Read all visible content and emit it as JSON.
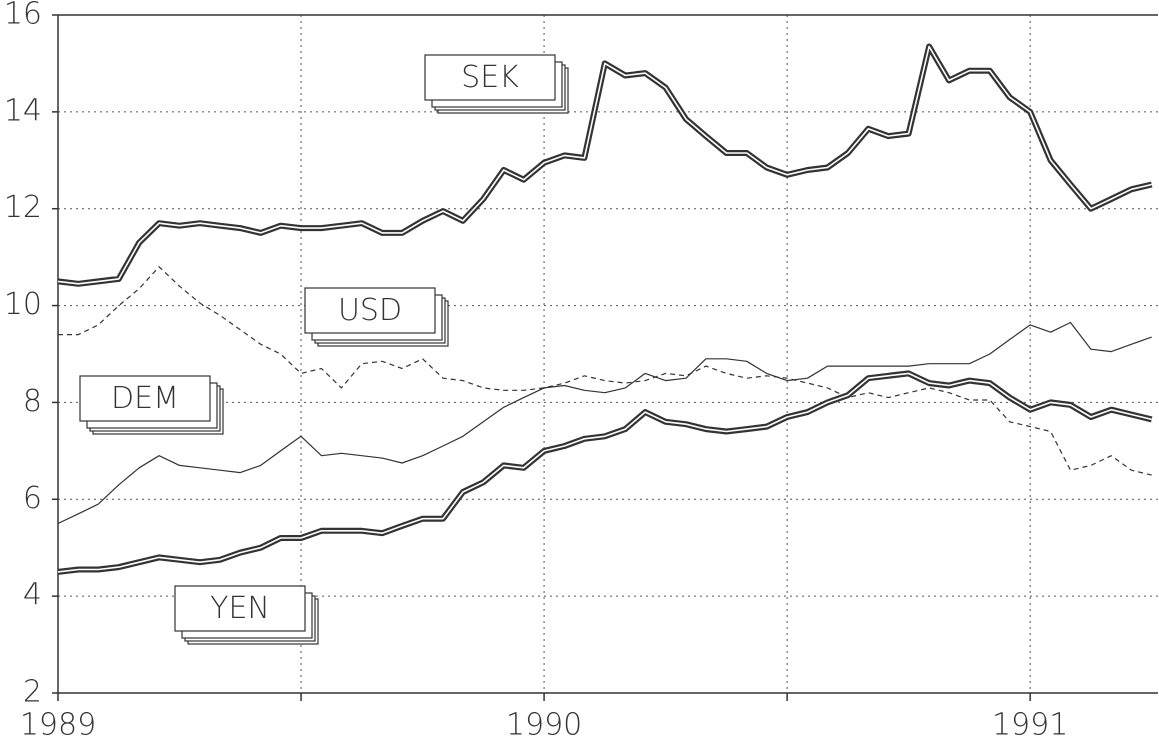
{
  "chart_data": {
    "type": "line",
    "x": [
      1989.0,
      1989.042,
      1989.083,
      1989.125,
      1989.167,
      1989.208,
      1989.25,
      1989.292,
      1989.333,
      1989.375,
      1989.417,
      1989.458,
      1989.5,
      1989.542,
      1989.583,
      1989.625,
      1989.667,
      1989.708,
      1989.75,
      1989.792,
      1989.833,
      1989.875,
      1989.917,
      1989.958,
      1990.0,
      1990.042,
      1990.083,
      1990.125,
      1990.167,
      1990.208,
      1990.25,
      1990.292,
      1990.333,
      1990.375,
      1990.417,
      1990.458,
      1990.5,
      1990.542,
      1990.583,
      1990.625,
      1990.667,
      1990.708,
      1990.75,
      1990.792,
      1990.833,
      1990.875,
      1990.917,
      1990.958,
      1991.0,
      1991.042,
      1991.083,
      1991.125,
      1991.167,
      1991.208,
      1991.25
    ],
    "series": [
      {
        "name": "SEK",
        "color": "#333333",
        "style": "thick",
        "values": [
          10.5,
          10.45,
          10.5,
          10.55,
          11.3,
          11.7,
          11.65,
          11.7,
          11.65,
          11.6,
          11.5,
          11.65,
          11.6,
          11.6,
          11.65,
          11.7,
          11.5,
          11.5,
          11.75,
          11.95,
          11.75,
          12.2,
          12.8,
          12.6,
          12.95,
          13.1,
          13.05,
          15.0,
          14.75,
          14.8,
          14.5,
          13.85,
          13.5,
          13.15,
          13.15,
          12.85,
          12.7,
          12.8,
          12.85,
          13.15,
          13.65,
          13.5,
          13.55,
          15.35,
          14.65,
          14.85,
          14.85,
          14.3,
          14.0,
          13.0,
          12.5,
          12.0,
          12.2,
          12.4,
          12.5
        ]
      },
      {
        "name": "USD",
        "color": "#333333",
        "style": "dashed",
        "values": [
          9.4,
          9.4,
          9.6,
          10.0,
          10.35,
          10.8,
          10.4,
          10.05,
          9.8,
          9.5,
          9.2,
          9.0,
          8.6,
          8.7,
          8.3,
          8.8,
          8.85,
          8.7,
          8.9,
          8.5,
          8.45,
          8.3,
          8.25,
          8.25,
          8.3,
          8.4,
          8.55,
          8.45,
          8.4,
          8.45,
          8.6,
          8.55,
          8.75,
          8.6,
          8.5,
          8.55,
          8.5,
          8.4,
          8.3,
          8.1,
          8.2,
          8.1,
          8.2,
          8.3,
          8.2,
          8.05,
          8.05,
          7.6,
          7.5,
          7.4,
          6.6,
          6.7,
          6.9,
          6.6,
          6.5
        ]
      },
      {
        "name": "DEM",
        "color": "#333333",
        "style": "thin",
        "values": [
          5.5,
          5.7,
          5.9,
          6.3,
          6.65,
          6.9,
          6.7,
          6.65,
          6.6,
          6.55,
          6.7,
          7.0,
          7.3,
          6.9,
          6.95,
          6.9,
          6.85,
          6.75,
          6.9,
          7.1,
          7.3,
          7.6,
          7.9,
          8.1,
          8.3,
          8.35,
          8.25,
          8.2,
          8.3,
          8.6,
          8.45,
          8.5,
          8.9,
          8.9,
          8.85,
          8.6,
          8.45,
          8.5,
          8.75,
          8.75,
          8.75,
          8.75,
          8.75,
          8.8,
          8.8,
          8.8,
          9.0,
          9.3,
          9.6,
          9.45,
          9.65,
          9.1,
          9.05,
          9.2,
          9.35
        ]
      },
      {
        "name": "YEN",
        "color": "#333333",
        "style": "thick",
        "values": [
          4.5,
          4.55,
          4.55,
          4.6,
          4.7,
          4.8,
          4.75,
          4.7,
          4.75,
          4.9,
          5.0,
          5.2,
          5.2,
          5.35,
          5.35,
          5.35,
          5.3,
          5.45,
          5.6,
          5.6,
          6.15,
          6.35,
          6.7,
          6.65,
          7.0,
          7.1,
          7.25,
          7.3,
          7.45,
          7.8,
          7.6,
          7.55,
          7.45,
          7.4,
          7.45,
          7.5,
          7.7,
          7.8,
          8.0,
          8.15,
          8.5,
          8.55,
          8.6,
          8.4,
          8.35,
          8.45,
          8.4,
          8.1,
          7.85,
          8.0,
          7.95,
          7.7,
          7.85,
          7.75,
          7.65
        ]
      }
    ],
    "xlim": [
      1989,
      1991.263
    ],
    "xticks": [
      1989,
      1990,
      1991
    ],
    "x_minor_ticks": [
      1989.5,
      1990.5
    ],
    "ylim": [
      2,
      16
    ],
    "yticks": [
      2,
      4,
      6,
      8,
      10,
      12,
      14,
      16
    ],
    "grid": true
  }
}
